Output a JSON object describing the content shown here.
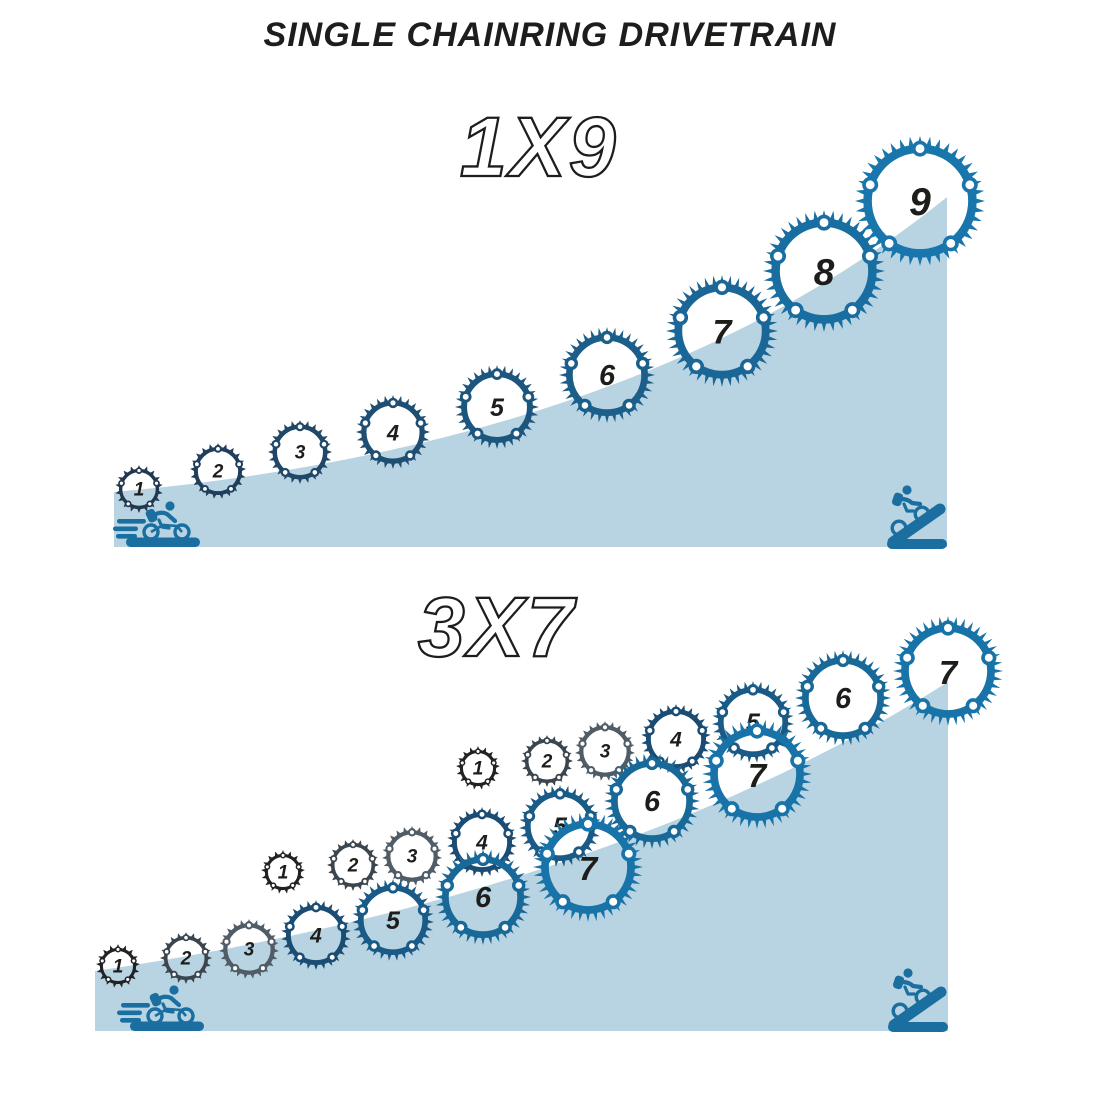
{
  "title": "SINGLE CHAINRING DRIVETRAIN",
  "colors": {
    "slope": "#b8d4e2",
    "accent": "#1a6ea0",
    "ink": "#1d1d1b",
    "heading_fill": "#ffffff"
  },
  "sections": [
    {
      "name": "1x9-drivetrain",
      "heading": "1X9",
      "icons": [
        "fast-cyclist",
        "climbing-cyclist"
      ],
      "gears": [
        {
          "label": "1",
          "color": "#223850"
        },
        {
          "label": "2",
          "color": "#213f5c"
        },
        {
          "label": "3",
          "color": "#204767"
        },
        {
          "label": "4",
          "color": "#1e4e72"
        },
        {
          "label": "5",
          "color": "#1c567e"
        },
        {
          "label": "6",
          "color": "#1b5e8a"
        },
        {
          "label": "7",
          "color": "#1a6696"
        },
        {
          "label": "8",
          "color": "#196ea1"
        },
        {
          "label": "9",
          "color": "#1876ac"
        }
      ]
    },
    {
      "name": "3x7-drivetrain",
      "heading": "3X7",
      "icons": [
        "fast-cyclist",
        "climbing-cyclist"
      ],
      "rows": [
        {
          "name": "chainring-row-top",
          "gears": [
            {
              "label": "1",
              "color": "#212225"
            },
            {
              "label": "2",
              "color": "#3b454d"
            },
            {
              "label": "3",
              "color": "#515d66"
            },
            {
              "label": "4",
              "color": "#1b4c73"
            },
            {
              "label": "5",
              "color": "#1a5a86"
            },
            {
              "label": "6",
              "color": "#186898"
            },
            {
              "label": "7",
              "color": "#1873a8"
            }
          ]
        },
        {
          "name": "chainring-row-middle",
          "gears": [
            {
              "label": "1",
              "color": "#212225"
            },
            {
              "label": "2",
              "color": "#3b454d"
            },
            {
              "label": "3",
              "color": "#515d66"
            },
            {
              "label": "4",
              "color": "#1b4c73"
            },
            {
              "label": "5",
              "color": "#1a5a86"
            },
            {
              "label": "6",
              "color": "#186898"
            },
            {
              "label": "7",
              "color": "#1873a8"
            }
          ]
        },
        {
          "name": "chainring-row-bottom",
          "gears": [
            {
              "label": "1",
              "color": "#212225"
            },
            {
              "label": "2",
              "color": "#3b454d"
            },
            {
              "label": "3",
              "color": "#515d66"
            },
            {
              "label": "4",
              "color": "#1b4c73"
            },
            {
              "label": "5",
              "color": "#1a5a86"
            },
            {
              "label": "6",
              "color": "#186898"
            },
            {
              "label": "7",
              "color": "#1873a8"
            }
          ]
        }
      ]
    }
  ]
}
